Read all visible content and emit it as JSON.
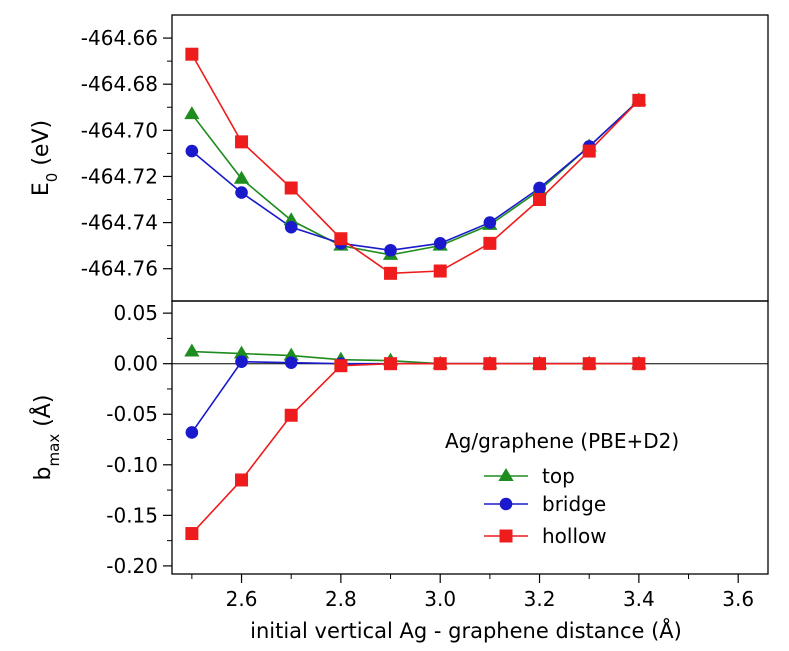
{
  "chart_data": {
    "type": "line",
    "xlabel": "initial vertical Ag - graphene distance (Å)",
    "xlim": [
      2.46,
      3.66
    ],
    "xticks": [
      "2.6",
      "2.8",
      "3.0",
      "3.2",
      "3.4",
      "3.6"
    ],
    "x": [
      2.5,
      2.6,
      2.7,
      2.8,
      2.9,
      3.0,
      3.1,
      3.2,
      3.3,
      3.4
    ],
    "legend": {
      "title": "Ag/graphene (PBE+D2)",
      "placement": "bottom-right of lower panel"
    },
    "panels": [
      {
        "name": "energy",
        "ylabel_main": "E",
        "ylabel_sub": "0",
        "ylabel_suffix": " (eV)",
        "ylim": [
          -464.774,
          -464.65
        ],
        "yticks": [
          "-464.66",
          "-464.68",
          "-464.70",
          "-464.72",
          "-464.74",
          "-464.76"
        ],
        "series": [
          {
            "name": "top",
            "color": "#1e8c1e",
            "marker": "triangle",
            "values": [
              -464.693,
              -464.721,
              -464.739,
              -464.75,
              -464.754,
              -464.75,
              -464.741,
              -464.726,
              -464.707,
              -464.687
            ]
          },
          {
            "name": "bridge",
            "color": "#1a1acc",
            "marker": "circle",
            "values": [
              -464.709,
              -464.727,
              -464.742,
              -464.749,
              -464.752,
              -464.749,
              -464.74,
              -464.725,
              -464.707,
              -464.687
            ]
          },
          {
            "name": "hollow",
            "color": "#ee1c1c",
            "marker": "square",
            "values": [
              -464.667,
              -464.705,
              -464.725,
              -464.747,
              -464.762,
              -464.761,
              -464.749,
              -464.73,
              -464.709,
              -464.687
            ]
          }
        ]
      },
      {
        "name": "bmax",
        "ylabel_main": "b",
        "ylabel_sub": "max",
        "ylabel_suffix": " (Å)",
        "ylim": [
          -0.208,
          0.062
        ],
        "yticks": [
          "0.05",
          "0.00",
          "-0.05",
          "-0.10",
          "-0.15",
          "-0.20"
        ],
        "zero_line": true,
        "series": [
          {
            "name": "top",
            "color": "#1e8c1e",
            "marker": "triangle",
            "values": [
              0.012,
              0.01,
              0.008,
              0.004,
              0.003,
              0.0,
              0.0,
              0.0,
              0.0,
              0.0
            ]
          },
          {
            "name": "bridge",
            "color": "#1a1acc",
            "marker": "circle",
            "values": [
              -0.068,
              0.002,
              0.001,
              0.0,
              0.0,
              0.0,
              0.0,
              0.0,
              0.0,
              0.0
            ]
          },
          {
            "name": "hollow",
            "color": "#ee1c1c",
            "marker": "square",
            "values": [
              -0.168,
              -0.115,
              -0.051,
              -0.002,
              0.0,
              0.0,
              0.0,
              0.0,
              0.0,
              0.0
            ]
          }
        ]
      }
    ]
  }
}
